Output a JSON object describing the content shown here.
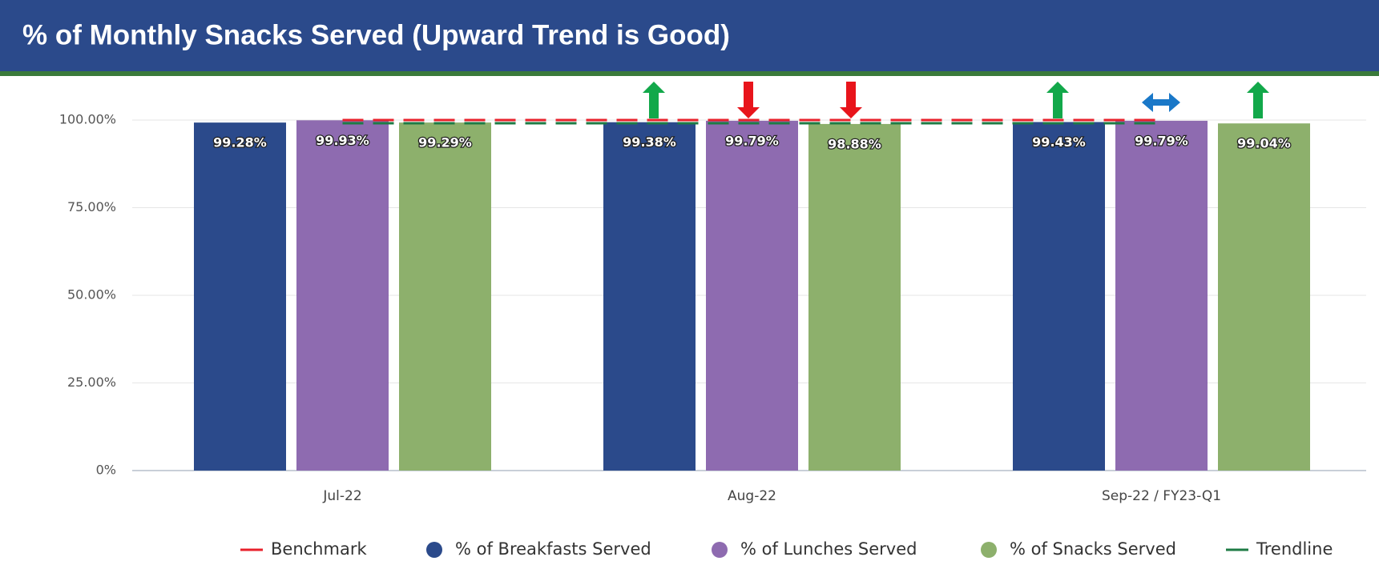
{
  "chart_data": {
    "type": "bar",
    "title": "% of Monthly Snacks Served (Upward Trend is Good)",
    "categories": [
      "Jul-22",
      "Aug-22",
      "Sep-22 / FY23-Q1"
    ],
    "ylim": [
      0,
      100
    ],
    "yticks": [
      {
        "value": 0,
        "label": "0%"
      },
      {
        "value": 25,
        "label": "25.00%"
      },
      {
        "value": 50,
        "label": "50.00%"
      },
      {
        "value": 75,
        "label": "75.00%"
      },
      {
        "value": 100,
        "label": "100.00%"
      }
    ],
    "grid": true,
    "legend": "bottom",
    "series": [
      {
        "name": "Benchmark",
        "type": "line",
        "color": "#e8212b",
        "values": [
          100,
          100,
          100
        ]
      },
      {
        "name": "% of Breakfasts Served",
        "type": "bar",
        "color": "#2b4a8b",
        "values": [
          99.28,
          99.38,
          99.43
        ],
        "value_labels": [
          "99.28%",
          "99.38%",
          "99.43%"
        ]
      },
      {
        "name": "% of Lunches Served",
        "type": "bar",
        "color": "#8e6bb0",
        "values": [
          99.93,
          99.79,
          99.79
        ],
        "value_labels": [
          "99.93%",
          "99.79%",
          "99.79%"
        ]
      },
      {
        "name": "% of Snacks Served",
        "type": "bar",
        "color": "#8db06c",
        "values": [
          99.29,
          98.88,
          99.04
        ],
        "value_labels": [
          "99.29%",
          "98.88%",
          "99.04%"
        ]
      },
      {
        "name": "Trendline",
        "type": "line",
        "color": "#1e7b45",
        "values": [
          99.1,
          99.1,
          99.1
        ]
      }
    ]
  }
}
